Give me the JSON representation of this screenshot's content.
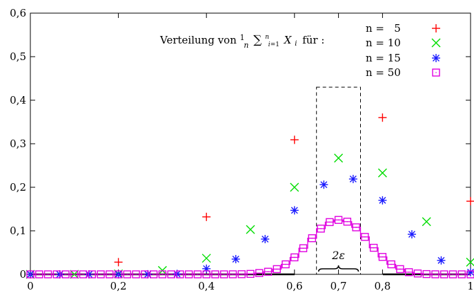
{
  "chart_data": {
    "type": "scatter",
    "title": "Verteilung von (1/n) Σ_{i=1}^{n} X_i für :",
    "xlim": [
      0,
      1
    ],
    "ylim": [
      0,
      0.6
    ],
    "x_ticks": [
      0,
      0.2,
      0.4,
      0.6,
      0.7,
      0.8,
      1
    ],
    "x_tick_labels": [
      "0",
      "0,2",
      "0,4",
      "0,6",
      "0,7",
      "0,8",
      "1"
    ],
    "y_ticks": [
      0,
      0.1,
      0.2,
      0.3,
      0.4,
      0.5,
      0.6
    ],
    "y_tick_labels": [
      "0",
      "0,1",
      "0,2",
      "0,3",
      "0,4",
      "0,5",
      "0,6"
    ],
    "grid": false,
    "legend_position": "top-right",
    "colors": {
      "n5": "#ff0000",
      "n10": "#00dd00",
      "n15": "#1a1aff",
      "n50": "#e000e0"
    },
    "series": [
      {
        "name": "n =   5",
        "marker": "plus",
        "x": [
          0,
          0.2,
          0.4,
          0.6,
          0.8,
          1
        ],
        "y": [
          0.0002,
          0.028,
          0.132,
          0.309,
          0.36,
          0.168
        ]
      },
      {
        "name": "n = 10",
        "marker": "cross",
        "x": [
          0,
          0.1,
          0.2,
          0.3,
          0.4,
          0.5,
          0.6,
          0.7,
          0.8,
          0.9,
          1
        ],
        "y": [
          0,
          0.0001,
          0.001,
          0.009,
          0.037,
          0.103,
          0.2,
          0.267,
          0.233,
          0.121,
          0.028
        ]
      },
      {
        "name": "n = 15",
        "marker": "star",
        "x": [
          0,
          0.0667,
          0.1333,
          0.2,
          0.2667,
          0.3333,
          0.4,
          0.4667,
          0.5333,
          0.6,
          0.6667,
          0.7333,
          0.8,
          0.8667,
          0.9333,
          1
        ],
        "y": [
          0,
          0,
          0,
          0,
          0.0002,
          0.001,
          0.013,
          0.035,
          0.081,
          0.147,
          0.206,
          0.219,
          0.17,
          0.092,
          0.032,
          0.005
        ]
      },
      {
        "name": "n = 50",
        "marker": "square",
        "x": [
          0,
          0.02,
          0.04,
          0.06,
          0.08,
          0.1,
          0.12,
          0.14,
          0.16,
          0.18,
          0.2,
          0.22,
          0.24,
          0.26,
          0.28,
          0.3,
          0.32,
          0.34,
          0.36,
          0.38,
          0.4,
          0.42,
          0.44,
          0.46,
          0.48,
          0.5,
          0.52,
          0.54,
          0.56,
          0.58,
          0.6,
          0.62,
          0.64,
          0.66,
          0.68,
          0.7,
          0.72,
          0.74,
          0.76,
          0.78,
          0.8,
          0.82,
          0.84,
          0.86,
          0.88,
          0.9,
          0.92,
          0.94,
          0.96,
          0.98,
          1
        ],
        "y": [
          0,
          0,
          0,
          0,
          0,
          0,
          0,
          0,
          0,
          0,
          0,
          0,
          0,
          0,
          0,
          0,
          0,
          0,
          0,
          0,
          0,
          0,
          0,
          0.0001,
          0.0003,
          0.001,
          0.003,
          0.006,
          0.012,
          0.023,
          0.039,
          0.06,
          0.083,
          0.105,
          0.12,
          0.125,
          0.121,
          0.108,
          0.086,
          0.061,
          0.04,
          0.023,
          0.012,
          0.005,
          0.002,
          0.0006,
          0.0001,
          0,
          0,
          0,
          0
        ]
      }
    ],
    "annotations": [
      {
        "type": "dashed-box",
        "x_range": [
          0.65,
          0.75
        ],
        "y_range": [
          0,
          0.43
        ]
      },
      {
        "type": "brace",
        "x_range": [
          0.65,
          0.75
        ],
        "label": "2ε"
      }
    ]
  }
}
